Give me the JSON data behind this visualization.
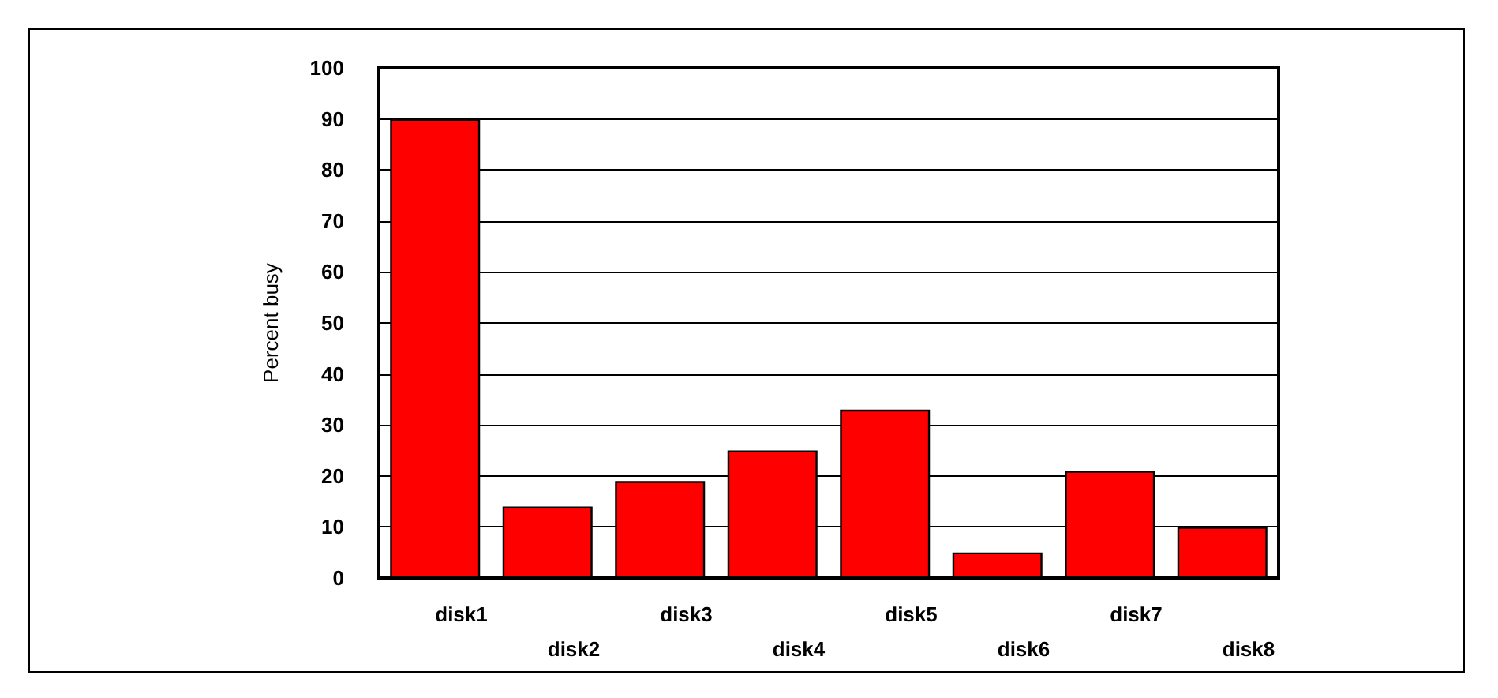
{
  "chart_data": {
    "type": "bar",
    "ylabel": "Percent busy",
    "categories": [
      "disk1",
      "disk2",
      "disk3",
      "disk4",
      "disk5",
      "disk6",
      "disk7",
      "disk8"
    ],
    "values": [
      90,
      14,
      19,
      25,
      33,
      5,
      21,
      10
    ],
    "color": "#ff0000",
    "ylim": [
      0,
      100
    ],
    "yticks": [
      0,
      10,
      20,
      30,
      40,
      50,
      60,
      70,
      80,
      90,
      100
    ],
    "grid": "y"
  }
}
